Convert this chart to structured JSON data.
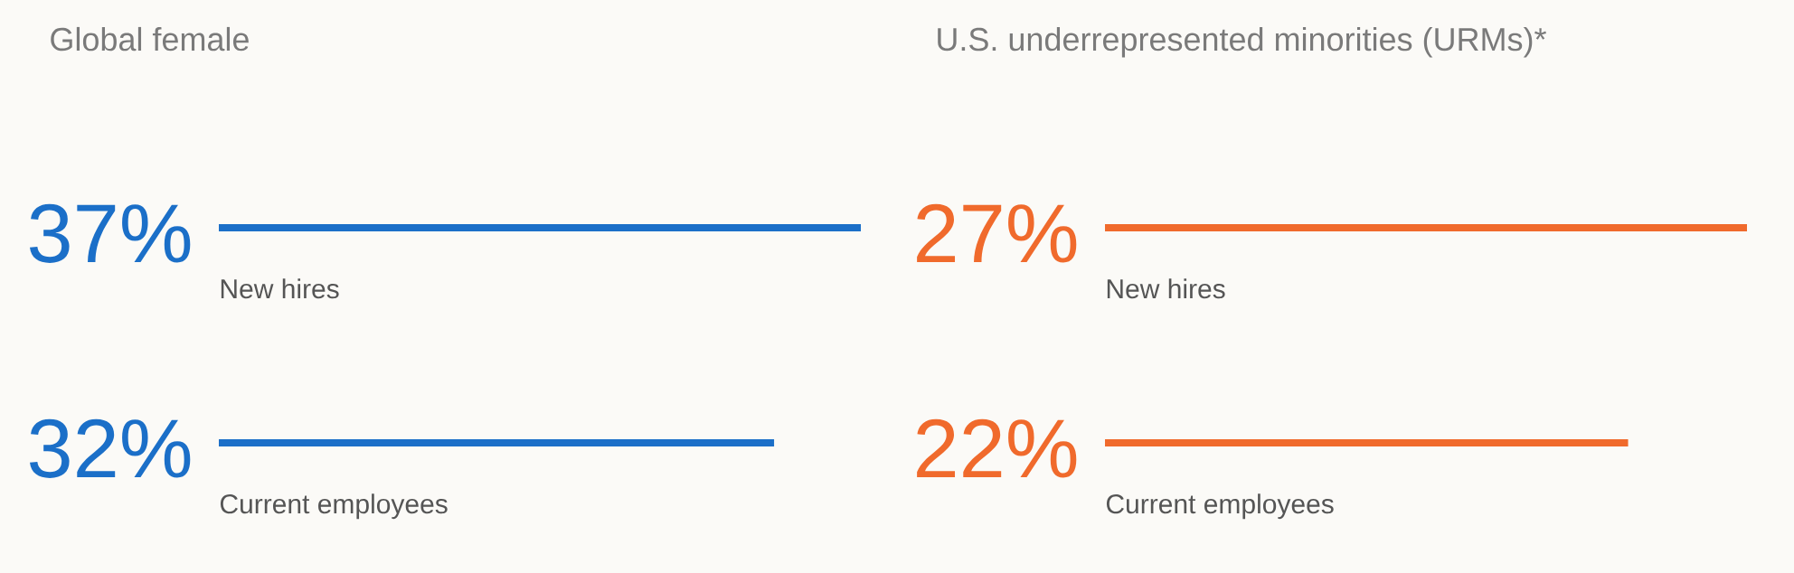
{
  "chart_data": [
    {
      "type": "bar",
      "orientation": "horizontal",
      "title": "Global female",
      "categories": [
        "New hires",
        "Current employees"
      ],
      "values": [
        37,
        32
      ],
      "value_labels": [
        "37%",
        "32%"
      ],
      "color": "#1b6fc8"
    },
    {
      "type": "bar",
      "orientation": "horizontal",
      "title": "U.S. underrepresented minorities (URMs)*",
      "categories": [
        "New hires",
        "Current employees"
      ],
      "values": [
        27,
        22
      ],
      "value_labels": [
        "27%",
        "22%"
      ],
      "color": "#f06a2c"
    }
  ]
}
